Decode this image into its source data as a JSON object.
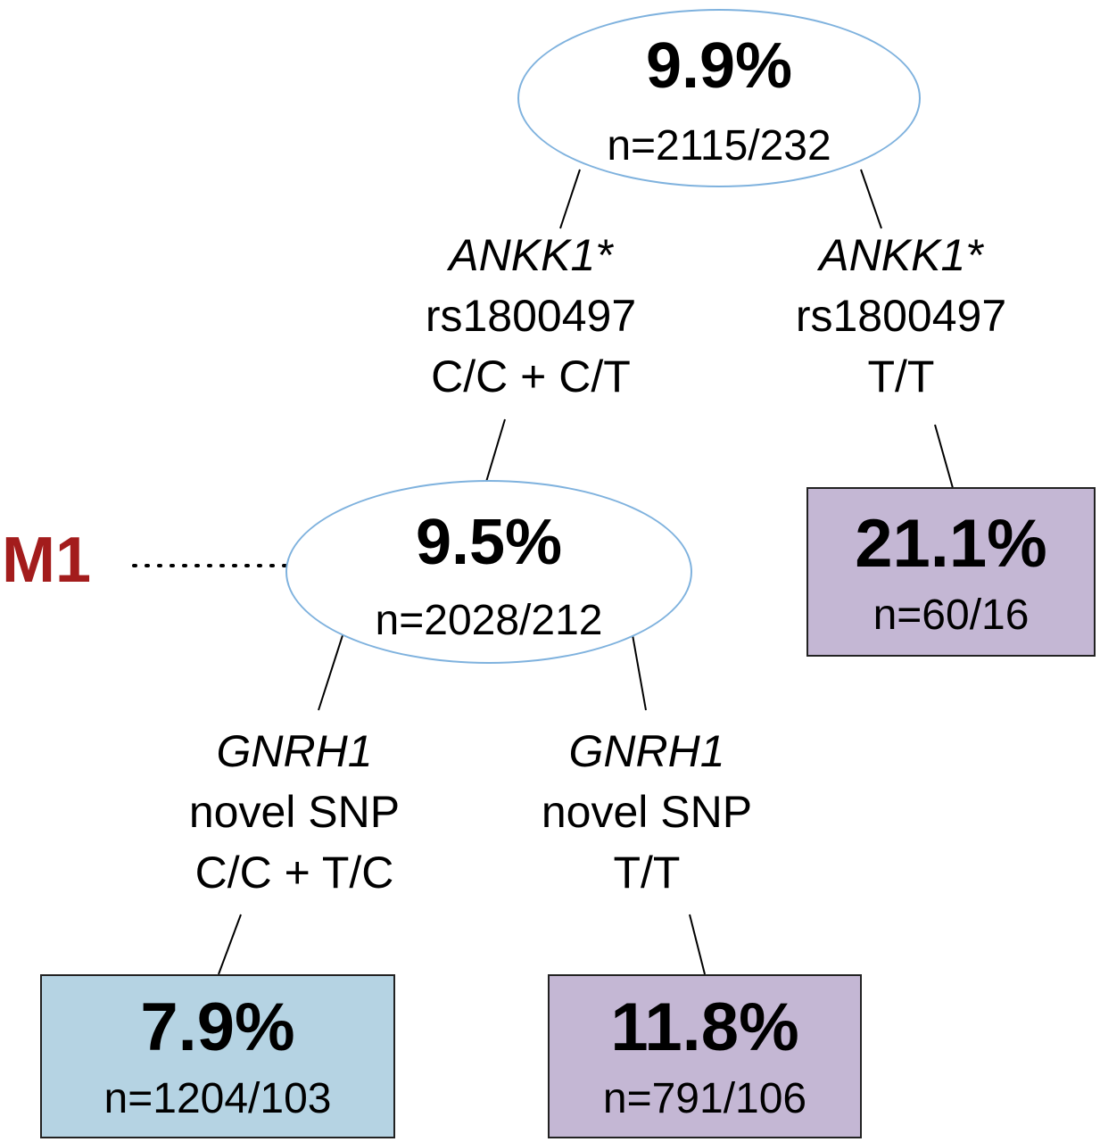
{
  "root": {
    "pct": "9.9%",
    "n": "n=2115/232"
  },
  "split1": {
    "left": {
      "gene": "ANKK1*",
      "snp": "rs1800497",
      "genotype": "C/C + C/T"
    },
    "right": {
      "gene": "ANKK1*",
      "snp": "rs1800497",
      "genotype": "T/T"
    }
  },
  "m1": {
    "label": "M1",
    "pct": "9.5%",
    "n": "n=2028/212"
  },
  "leaf_right": {
    "pct": "21.1%",
    "n": "n=60/16"
  },
  "split2": {
    "left": {
      "gene": "GNRH1",
      "snp": "novel SNP",
      "genotype": "C/C + T/C"
    },
    "right": {
      "gene": "GNRH1",
      "snp": "novel SNP",
      "genotype": "T/T"
    }
  },
  "leaf_left": {
    "pct": "7.9%",
    "n": "n=1204/103"
  },
  "leaf_mid": {
    "pct": "11.8%",
    "n": "n=791/106"
  },
  "colors": {
    "ellipse_border": "#7fb2de",
    "leaf_blue": "#b5d3e3",
    "leaf_purple": "#c4b7d4",
    "m1_label": "#a31c1c"
  }
}
